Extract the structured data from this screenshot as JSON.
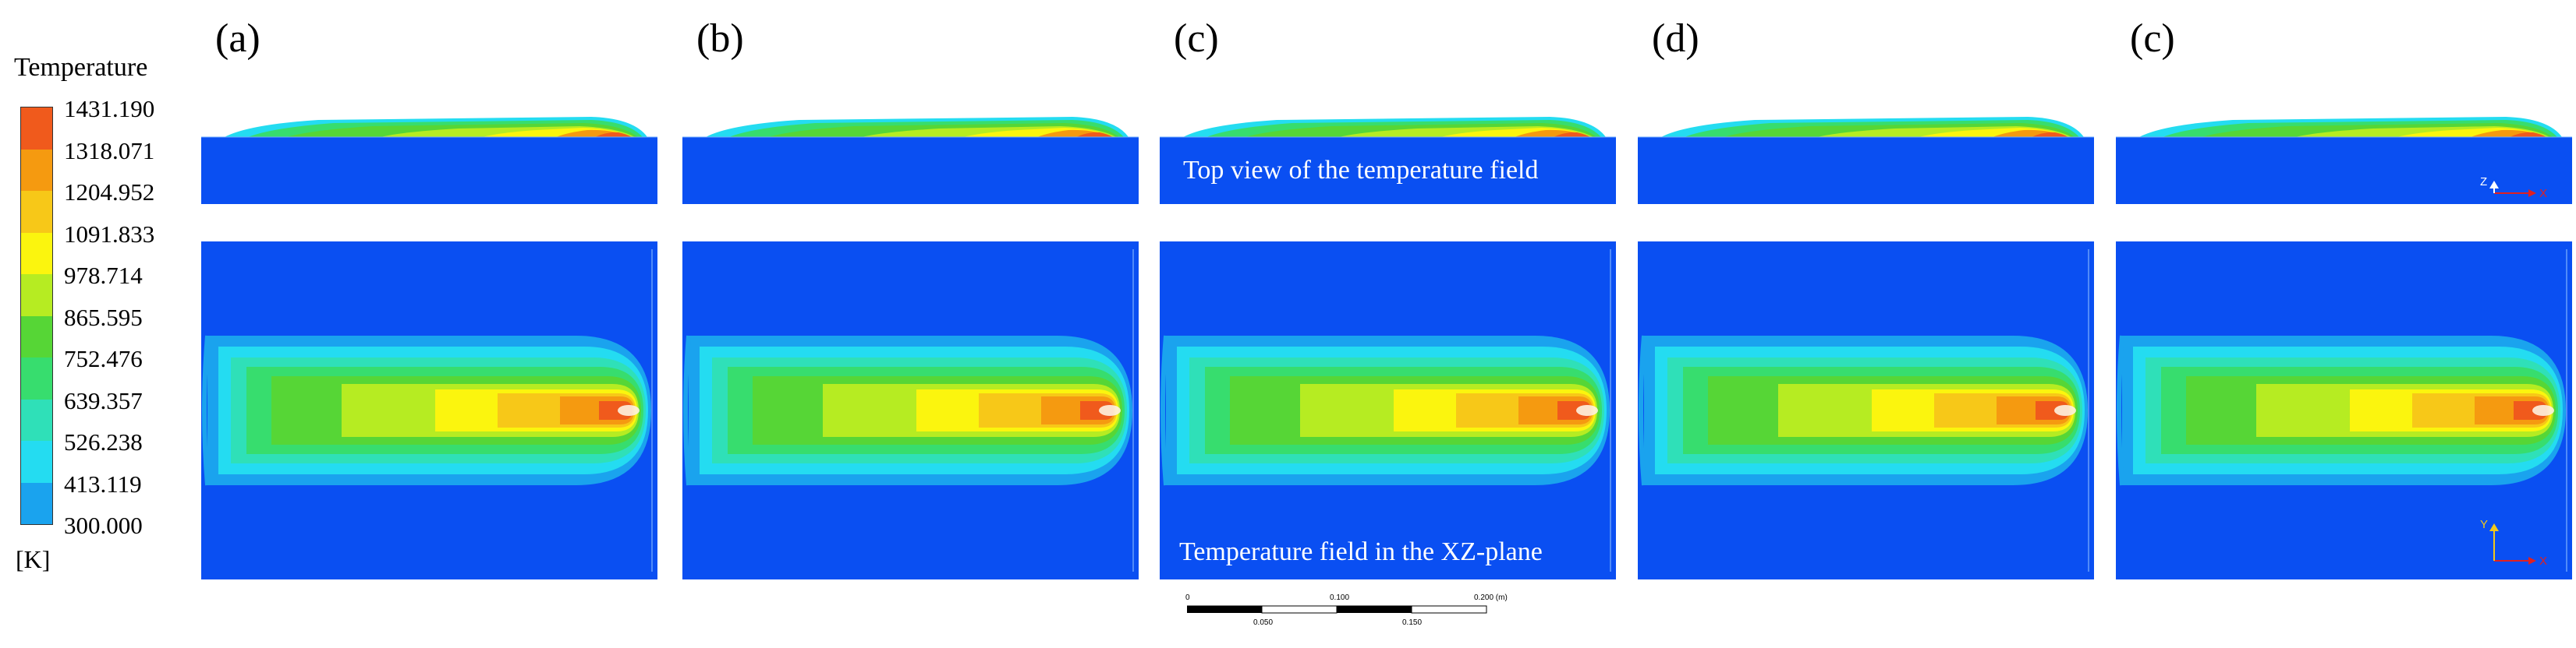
{
  "legend": {
    "title": "Temperature",
    "unit": "[K]",
    "ticks": [
      "1431.190",
      "1318.071",
      "1204.952",
      "1091.833",
      "978.714",
      "865.595",
      "752.476",
      "639.357",
      "526.238",
      "413.119",
      "300.000"
    ],
    "colors": [
      "#f05a1c",
      "#f59a10",
      "#f7c818",
      "#fbf50e",
      "#b6ec22",
      "#56d636",
      "#37dd6e",
      "#2fe0b8",
      "#24dcf1",
      "#1aa3ee"
    ]
  },
  "panels": [
    {
      "label": "(a)"
    },
    {
      "label": "(b)"
    },
    {
      "label": "(c)"
    },
    {
      "label": "(d)"
    },
    {
      "label": "(c)"
    }
  ],
  "annotations": {
    "top_view": "Top view of the temperature field",
    "xz_plane": "Temperature field in the XZ-plane"
  },
  "triads": {
    "top": [
      "Z",
      "X"
    ],
    "bottom": [
      "Y",
      "X"
    ]
  },
  "scale_bar": {
    "top_labels": [
      "0",
      "0.100",
      "0.200 (m)"
    ],
    "bottom_labels": [
      "0.050",
      "0.150"
    ]
  },
  "colors": {
    "background_blue": "#0a4ff2",
    "contour_cyan": "#20d8f0",
    "hot_core": "#f05a1c"
  }
}
